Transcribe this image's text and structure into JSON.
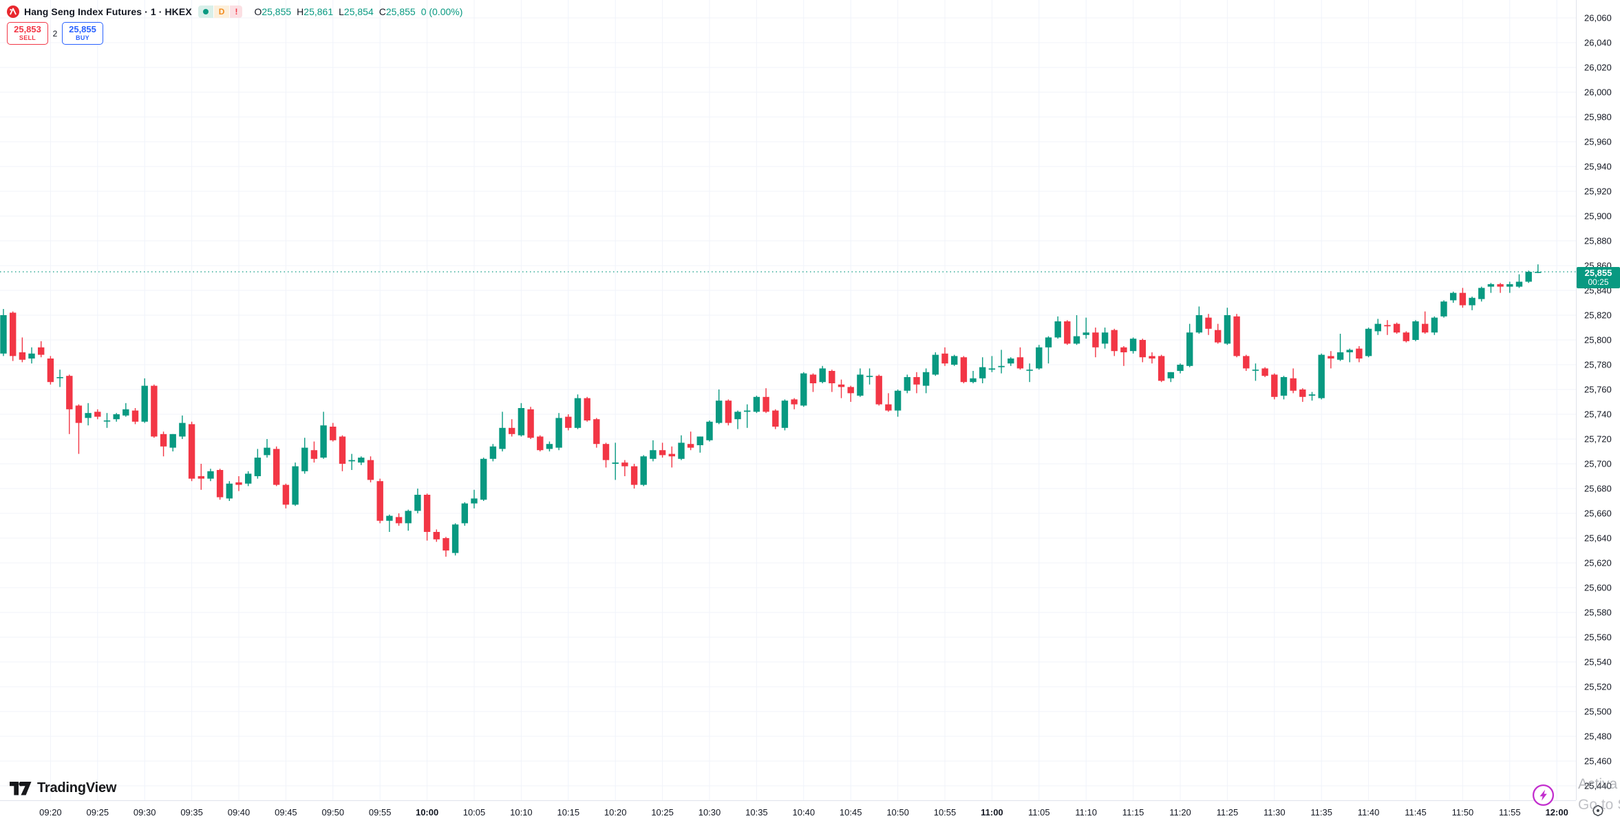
{
  "legend": {
    "title": "Hang Seng Index Futures · 1 · HKEX",
    "status": {
      "interval_badge": "D",
      "alert": "!"
    },
    "ohlc": {
      "o_label": "O",
      "o": "25,855",
      "h_label": "H",
      "h": "25,861",
      "l_label": "L",
      "l": "25,854",
      "c_label": "C",
      "c": "25,855",
      "change": "0 (0.00%)"
    }
  },
  "order_panel": {
    "sell_price": "25,853",
    "sell_label": "SELL",
    "spread": "2",
    "buy_price": "25,855",
    "buy_label": "BUY"
  },
  "price_tag": {
    "price": "25,855",
    "countdown": "00:25"
  },
  "watermark": {
    "line1": "Activa",
    "line2": "Go to S"
  },
  "footer": {
    "brand": "TradingView"
  },
  "colors": {
    "up": "#089981",
    "down": "#f23645",
    "buy": "#2962ff",
    "sell": "#f23645",
    "grid": "#f0f3fa",
    "axis_border": "#e0e3eb",
    "text": "#131722",
    "lightning": "#c22ece"
  },
  "chart_data": {
    "type": "candlestick",
    "title": "Hang Seng Index Futures",
    "interval": "1",
    "exchange": "HKEX",
    "start_time": "09:15",
    "interval_minutes": 1,
    "y_axis": {
      "max": 26060,
      "min": 25440,
      "step": 20
    },
    "x_axis": {
      "labels": [
        "09:20",
        "09:25",
        "09:30",
        "09:35",
        "09:40",
        "09:45",
        "09:50",
        "09:55",
        "10:00",
        "10:05",
        "10:10",
        "10:15",
        "10:20",
        "10:25",
        "10:30",
        "10:35",
        "10:40",
        "10:45",
        "10:50",
        "10:55",
        "11:00",
        "11:05",
        "11:10",
        "11:15",
        "11:20",
        "11:25",
        "11:30",
        "11:35",
        "11:40",
        "11:45",
        "11:50",
        "11:55",
        "12:00"
      ]
    },
    "price_line": {
      "value": 25855,
      "countdown": "00:25"
    },
    "candles": [
      [
        25789,
        25825,
        25787,
        25820
      ],
      [
        25822,
        25823,
        25783,
        25787
      ],
      [
        25790,
        25802,
        25782,
        25784
      ],
      [
        25785,
        25794,
        25781,
        25789
      ],
      [
        25794,
        25799,
        25786,
        25788
      ],
      [
        25785,
        25787,
        25764,
        25766
      ],
      [
        25770,
        25776,
        25762,
        25770
      ],
      [
        25771,
        25772,
        25724,
        25744
      ],
      [
        25747,
        25748,
        25708,
        25733
      ],
      [
        25737,
        25749,
        25731,
        25741
      ],
      [
        25742,
        25744,
        25736,
        25738
      ],
      [
        25735,
        25741,
        25729,
        25735
      ],
      [
        25736,
        25741,
        25734,
        25740
      ],
      [
        25739,
        25749,
        25738,
        25744
      ],
      [
        25743,
        25745,
        25732,
        25734
      ],
      [
        25734,
        25769,
        25733,
        25763
      ],
      [
        25763,
        25764,
        25721,
        25722
      ],
      [
        25724,
        25726,
        25706,
        25714
      ],
      [
        25713,
        25724,
        25710,
        25724
      ],
      [
        25722,
        25739,
        25720,
        25733
      ],
      [
        25732,
        25734,
        25686,
        25688
      ],
      [
        25690,
        25700,
        25679,
        25688
      ],
      [
        25688,
        25696,
        25686,
        25694
      ],
      [
        25695,
        25696,
        25671,
        25673
      ],
      [
        25672,
        25686,
        25670,
        25684
      ],
      [
        25685,
        25690,
        25678,
        25683
      ],
      [
        25684,
        25694,
        25682,
        25692
      ],
      [
        25690,
        25712,
        25688,
        25705
      ],
      [
        25707,
        25720,
        25705,
        25713
      ],
      [
        25712,
        25714,
        25682,
        25683
      ],
      [
        25683,
        25684,
        25664,
        25667
      ],
      [
        25667,
        25701,
        25666,
        25698
      ],
      [
        25694,
        25721,
        25692,
        25713
      ],
      [
        25711,
        25718,
        25701,
        25704
      ],
      [
        25705,
        25742,
        25704,
        25731
      ],
      [
        25730,
        25733,
        25718,
        25719
      ],
      [
        25722,
        25723,
        25694,
        25700
      ],
      [
        25702,
        25708,
        25695,
        25703
      ],
      [
        25701,
        25706,
        25699,
        25705
      ],
      [
        25703,
        25706,
        25685,
        25687
      ],
      [
        25686,
        25688,
        25652,
        25654
      ],
      [
        25654,
        25659,
        25645,
        25658
      ],
      [
        25657,
        25660,
        25650,
        25652
      ],
      [
        25652,
        25663,
        25646,
        25662
      ],
      [
        25662,
        25680,
        25660,
        25675
      ],
      [
        25675,
        25676,
        25638,
        25645
      ],
      [
        25645,
        25647,
        25637,
        25639
      ],
      [
        25640,
        25641,
        25625,
        25630
      ],
      [
        25628,
        25652,
        25626,
        25651
      ],
      [
        25652,
        25669,
        25650,
        25668
      ],
      [
        25668,
        25679,
        25664,
        25672
      ],
      [
        25671,
        25705,
        25670,
        25704
      ],
      [
        25704,
        25716,
        25702,
        25714
      ],
      [
        25712,
        25742,
        25710,
        25729
      ],
      [
        25729,
        25736,
        25722,
        25724
      ],
      [
        25723,
        25749,
        25722,
        25745
      ],
      [
        25744,
        25746,
        25720,
        25721
      ],
      [
        25722,
        25723,
        25710,
        25711
      ],
      [
        25712,
        25718,
        25710,
        25716
      ],
      [
        25713,
        25741,
        25711,
        25737
      ],
      [
        25738,
        25740,
        25727,
        25729
      ],
      [
        25729,
        25756,
        25728,
        25753
      ],
      [
        25753,
        25754,
        25734,
        25735
      ],
      [
        25736,
        25737,
        25713,
        25716
      ],
      [
        25716,
        25717,
        25697,
        25703
      ],
      [
        25700,
        25717,
        25687,
        25701
      ],
      [
        25701,
        25703,
        25690,
        25698
      ],
      [
        25698,
        25700,
        25680,
        25683
      ],
      [
        25683,
        25707,
        25682,
        25706
      ],
      [
        25704,
        25719,
        25702,
        25711
      ],
      [
        25711,
        25717,
        25705,
        25707
      ],
      [
        25708,
        25714,
        25697,
        25706
      ],
      [
        25704,
        25723,
        25703,
        25717
      ],
      [
        25716,
        25726,
        25711,
        25713
      ],
      [
        25715,
        25722,
        25709,
        25722
      ],
      [
        25719,
        25735,
        25718,
        25734
      ],
      [
        25733,
        25760,
        25732,
        25751
      ],
      [
        25751,
        25752,
        25731,
        25733
      ],
      [
        25736,
        25743,
        25728,
        25742
      ],
      [
        25742,
        25748,
        25729,
        25743
      ],
      [
        25742,
        25755,
        25741,
        25754
      ],
      [
        25754,
        25761,
        25741,
        25742
      ],
      [
        25743,
        25744,
        25728,
        25730
      ],
      [
        25729,
        25752,
        25727,
        25751
      ],
      [
        25752,
        25753,
        25744,
        25748
      ],
      [
        25747,
        25774,
        25746,
        25773
      ],
      [
        25772,
        25773,
        25758,
        25765
      ],
      [
        25766,
        25779,
        25765,
        25777
      ],
      [
        25775,
        25776,
        25758,
        25765
      ],
      [
        25764,
        25768,
        25753,
        25762
      ],
      [
        25762,
        25763,
        25750,
        25757
      ],
      [
        25755,
        25777,
        25754,
        25772
      ],
      [
        25771,
        25777,
        25764,
        25771
      ],
      [
        25771,
        25772,
        25747,
        25748
      ],
      [
        25748,
        25757,
        25742,
        25743
      ],
      [
        25743,
        25760,
        25738,
        25759
      ],
      [
        25759,
        25772,
        25757,
        25770
      ],
      [
        25770,
        25774,
        25757,
        25764
      ],
      [
        25763,
        25777,
        25757,
        25774
      ],
      [
        25772,
        25790,
        25771,
        25788
      ],
      [
        25789,
        25794,
        25779,
        25781
      ],
      [
        25780,
        25788,
        25779,
        25787
      ],
      [
        25786,
        25787,
        25765,
        25766
      ],
      [
        25766,
        25775,
        25765,
        25769
      ],
      [
        25769,
        25786,
        25765,
        25778
      ],
      [
        25776,
        25787,
        25774,
        25777
      ],
      [
        25778,
        25792,
        25773,
        25779
      ],
      [
        25781,
        25786,
        25779,
        25785
      ],
      [
        25786,
        25794,
        25776,
        25777
      ],
      [
        25776,
        25781,
        25766,
        25776
      ],
      [
        25777,
        25796,
        25776,
        25794
      ],
      [
        25794,
        25803,
        25781,
        25802
      ],
      [
        25802,
        25819,
        25801,
        25815
      ],
      [
        25815,
        25816,
        25796,
        25797
      ],
      [
        25797,
        25820,
        25796,
        25803
      ],
      [
        25804,
        25818,
        25801,
        25806
      ],
      [
        25806,
        25810,
        25786,
        25794
      ],
      [
        25797,
        25810,
        25793,
        25806
      ],
      [
        25808,
        25809,
        25787,
        25791
      ],
      [
        25794,
        25795,
        25779,
        25790
      ],
      [
        25791,
        25802,
        25789,
        25801
      ],
      [
        25800,
        25801,
        25782,
        25786
      ],
      [
        25787,
        25790,
        25781,
        25785
      ],
      [
        25787,
        25788,
        25766,
        25767
      ],
      [
        25769,
        25774,
        25766,
        25774
      ],
      [
        25775,
        25781,
        25773,
        25780
      ],
      [
        25779,
        25813,
        25778,
        25806
      ],
      [
        25806,
        25827,
        25805,
        25820
      ],
      [
        25818,
        25821,
        25804,
        25809
      ],
      [
        25808,
        25813,
        25797,
        25798
      ],
      [
        25797,
        25826,
        25796,
        25820
      ],
      [
        25819,
        25821,
        25786,
        25787
      ],
      [
        25787,
        25788,
        25775,
        25777
      ],
      [
        25776,
        25781,
        25767,
        25776
      ],
      [
        25777,
        25778,
        25770,
        25771
      ],
      [
        25772,
        25773,
        25752,
        25754
      ],
      [
        25755,
        25771,
        25752,
        25770
      ],
      [
        25769,
        25777,
        25757,
        25759
      ],
      [
        25760,
        25761,
        25750,
        25754
      ],
      [
        25755,
        25758,
        25751,
        25756
      ],
      [
        25753,
        25789,
        25752,
        25788
      ],
      [
        25787,
        25791,
        25777,
        25785
      ],
      [
        25784,
        25805,
        25783,
        25790
      ],
      [
        25790,
        25793,
        25782,
        25792
      ],
      [
        25793,
        25795,
        25782,
        25785
      ],
      [
        25787,
        25810,
        25786,
        25809
      ],
      [
        25807,
        25817,
        25804,
        25813
      ],
      [
        25812,
        25816,
        25804,
        25811
      ],
      [
        25813,
        25814,
        25805,
        25806
      ],
      [
        25806,
        25807,
        25798,
        25799
      ],
      [
        25800,
        25816,
        25799,
        25815
      ],
      [
        25813,
        25823,
        25805,
        25806
      ],
      [
        25806,
        25819,
        25804,
        25818
      ],
      [
        25819,
        25832,
        25818,
        25831
      ],
      [
        25832,
        25839,
        25830,
        25838
      ],
      [
        25838,
        25842,
        25826,
        25828
      ],
      [
        25828,
        25835,
        25824,
        25834
      ],
      [
        25833,
        25843,
        25831,
        25842
      ],
      [
        25843,
        25846,
        25838,
        25845
      ],
      [
        25845,
        25846,
        25838,
        25843
      ],
      [
        25843,
        25847,
        25838,
        25845
      ],
      [
        25843,
        25853,
        25842,
        25847
      ],
      [
        25847,
        25856,
        25846,
        25855
      ],
      [
        25855,
        25861,
        25854,
        25855
      ]
    ]
  }
}
